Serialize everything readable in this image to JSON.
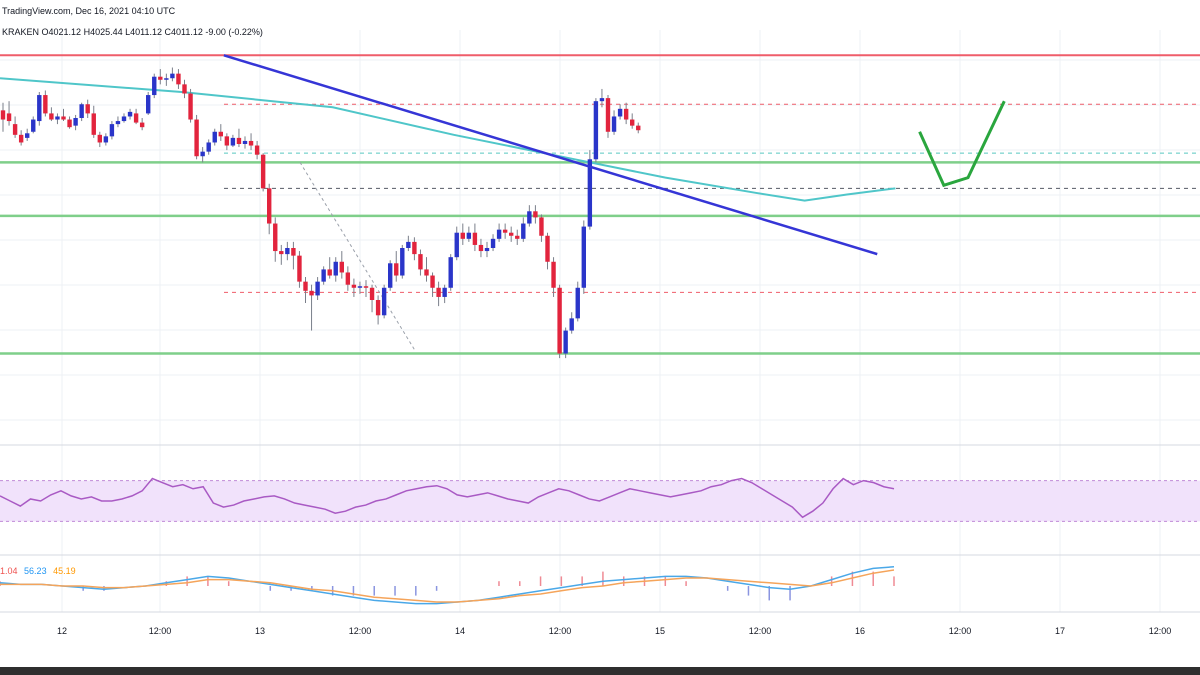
{
  "header": {
    "source_line": "TradingView.com, Dec 16, 2021 04:10 UTC",
    "symbol_prefix": "KRAKEN",
    "ohlc": "O4021.12  H4025.44  L4011.12  C4011.12  -9.00 (-0.22%)"
  },
  "macd_labels": {
    "v1": "1.04",
    "v2": "56.23",
    "v3": "45.19"
  },
  "chart_data": [
    {
      "type": "candlestick",
      "title": "",
      "time_labels": [
        "12",
        "12:00",
        "13",
        "12:00",
        "14",
        "12:00",
        "15",
        "12:00",
        "16",
        "12:00",
        "17",
        "12:00"
      ],
      "price_range": [
        3875,
        4130
      ],
      "horizontal_levels": {
        "resistance_red": 4120,
        "green_upper": 4050,
        "green_middle": 4015,
        "green_lower": 3925,
        "dashed_red_upper": 4088,
        "dashed_red_lower": 3965,
        "dashed_gray": 4033,
        "dashed_teal": 4056
      },
      "trendline_points": [
        {
          "t": 37,
          "p": 4120
        },
        {
          "t": 145,
          "p": 3990
        }
      ],
      "projection_points": [
        {
          "t": 152,
          "p": 4070
        },
        {
          "t": 156,
          "p": 4035
        },
        {
          "t": 160,
          "p": 4040
        },
        {
          "t": 166,
          "p": 4090
        }
      ],
      "ma_points": [
        {
          "t": 0,
          "p": 4105
        },
        {
          "t": 30,
          "p": 4096
        },
        {
          "t": 55,
          "p": 4086
        },
        {
          "t": 75,
          "p": 4068
        },
        {
          "t": 95,
          "p": 4052
        },
        {
          "t": 110,
          "p": 4040
        },
        {
          "t": 125,
          "p": 4030
        },
        {
          "t": 133,
          "p": 4025
        },
        {
          "t": 140,
          "p": 4029
        },
        {
          "t": 148,
          "p": 4033
        }
      ],
      "candles": [
        [
          4084,
          4089,
          4078,
          4070
        ],
        [
          4082,
          4090,
          4077,
          4074
        ],
        [
          4075,
          4080,
          4068,
          4066
        ],
        [
          4068,
          4071,
          4063,
          4061
        ],
        [
          4066,
          4072,
          4069,
          4064
        ],
        [
          4070,
          4080,
          4078,
          4069
        ],
        [
          4077,
          4096,
          4094,
          4074
        ],
        [
          4094,
          4097,
          4082,
          4080
        ],
        [
          4082,
          4086,
          4078,
          4077
        ],
        [
          4078,
          4082,
          4080,
          4075
        ],
        [
          4080,
          4085,
          4078,
          4077
        ],
        [
          4078,
          4080,
          4073,
          4072
        ],
        [
          4074,
          4081,
          4079,
          4071
        ],
        [
          4079,
          4089,
          4088,
          4077
        ],
        [
          4088,
          4091,
          4082,
          4079
        ],
        [
          4082,
          4087,
          4068,
          4066
        ],
        [
          4068,
          4070,
          4063,
          4060
        ],
        [
          4063,
          4069,
          4067,
          4061
        ],
        [
          4067,
          4077,
          4075,
          4065
        ],
        [
          4075,
          4080,
          4077,
          4073
        ],
        [
          4077,
          4082,
          4080,
          4076
        ],
        [
          4080,
          4085,
          4083,
          4078
        ],
        [
          4082,
          4085,
          4076,
          4075
        ],
        [
          4076,
          4079,
          4073,
          4071
        ],
        [
          4082,
          4096,
          4094,
          4081
        ],
        [
          4094,
          4108,
          4106,
          4092
        ],
        [
          4106,
          4111,
          4104,
          4101
        ],
        [
          4104,
          4108,
          4105,
          4100
        ],
        [
          4105,
          4112,
          4108,
          4103
        ],
        [
          4108,
          4111,
          4101,
          4098
        ],
        [
          4101,
          4104,
          4095,
          4092
        ],
        [
          4095,
          4098,
          4078,
          4076
        ],
        [
          4078,
          4081,
          4054,
          4052
        ],
        [
          4054,
          4060,
          4057,
          4050
        ],
        [
          4057,
          4065,
          4063,
          4055
        ],
        [
          4063,
          4072,
          4070,
          4061
        ],
        [
          4070,
          4075,
          4067,
          4064
        ],
        [
          4067,
          4069,
          4061,
          4058
        ],
        [
          4061,
          4068,
          4066,
          4060
        ],
        [
          4066,
          4072,
          4062,
          4060
        ],
        [
          4062,
          4067,
          4064,
          4059
        ],
        [
          4064,
          4069,
          4061,
          4058
        ],
        [
          4061,
          4064,
          4055,
          4052
        ],
        [
          4055,
          4056,
          4033,
          4031
        ],
        [
          4033,
          4036,
          4010,
          4003
        ],
        [
          4010,
          4014,
          3992,
          3985
        ],
        [
          3992,
          3996,
          3990,
          3983
        ],
        [
          3990,
          3998,
          3994,
          3986
        ],
        [
          3994,
          3998,
          3989,
          3980
        ],
        [
          3989,
          3992,
          3972,
          3968
        ],
        [
          3972,
          3975,
          3966,
          3958
        ],
        [
          3966,
          3970,
          3963,
          3940
        ],
        [
          3963,
          3975,
          3972,
          3960
        ],
        [
          3972,
          3982,
          3980,
          3970
        ],
        [
          3980,
          3988,
          3976,
          3974
        ],
        [
          3976,
          3988,
          3985,
          3972
        ],
        [
          3985,
          3992,
          3978,
          3974
        ],
        [
          3978,
          3982,
          3970,
          3966
        ],
        [
          3970,
          3974,
          3968,
          3962
        ],
        [
          3968,
          3972,
          3969,
          3964
        ],
        [
          3969,
          3973,
          3968,
          3962
        ],
        [
          3968,
          3970,
          3960,
          3952
        ],
        [
          3960,
          3963,
          3950,
          3944
        ],
        [
          3950,
          3970,
          3968,
          3948
        ],
        [
          3968,
          3986,
          3984,
          3966
        ],
        [
          3984,
          3992,
          3976,
          3972
        ],
        [
          3976,
          3996,
          3994,
          3974
        ],
        [
          3994,
          4002,
          3998,
          3992
        ],
        [
          3998,
          4001,
          3990,
          3986
        ],
        [
          3990,
          3993,
          3980,
          3976
        ],
        [
          3980,
          3988,
          3976,
          3972
        ],
        [
          3976,
          3978,
          3968,
          3962
        ],
        [
          3968,
          3972,
          3962,
          3956
        ],
        [
          3962,
          3970,
          3968,
          3958
        ],
        [
          3968,
          3990,
          3988,
          3966
        ],
        [
          3988,
          4008,
          4004,
          3986
        ],
        [
          4004,
          4010,
          4000,
          3996
        ],
        [
          4000,
          4008,
          4004,
          3998
        ],
        [
          4004,
          4010,
          3996,
          3992
        ],
        [
          3996,
          4000,
          3992,
          3988
        ],
        [
          3992,
          3998,
          3994,
          3988
        ],
        [
          3994,
          4003,
          4000,
          3992
        ],
        [
          4000,
          4010,
          4006,
          3998
        ],
        [
          4006,
          4010,
          4004,
          4000
        ],
        [
          4004,
          4008,
          4002,
          3998
        ],
        [
          4002,
          4006,
          4000,
          3996
        ],
        [
          4000,
          4014,
          4010,
          3998
        ],
        [
          4010,
          4022,
          4018,
          4008
        ],
        [
          4018,
          4022,
          4014,
          4010
        ],
        [
          4014,
          4016,
          4002,
          3998
        ],
        [
          4002,
          4004,
          3985,
          3980
        ],
        [
          3985,
          3988,
          3968,
          3962
        ],
        [
          3968,
          3970,
          3925,
          3922
        ],
        [
          3925,
          3942,
          3940,
          3922
        ],
        [
          3940,
          3952,
          3948,
          3938
        ],
        [
          3948,
          3972,
          3968,
          3946
        ],
        [
          3968,
          4012,
          4008,
          3964
        ],
        [
          4008,
          4058,
          4052,
          4006
        ],
        [
          4052,
          4092,
          4090,
          4050
        ],
        [
          4090,
          4098,
          4092,
          4086
        ],
        [
          4092,
          4094,
          4070,
          4066
        ],
        [
          4070,
          4084,
          4080,
          4068
        ],
        [
          4080,
          4088,
          4085,
          4078
        ],
        [
          4085,
          4089,
          4078,
          4075
        ],
        [
          4078,
          4082,
          4074,
          4072
        ],
        [
          4074,
          4076,
          4071,
          4069
        ]
      ]
    },
    {
      "type": "line",
      "name": "",
      "title": "",
      "band": [
        30,
        70
      ],
      "values": [
        55,
        50,
        45,
        52,
        50,
        56,
        60,
        55,
        52,
        54,
        50,
        50,
        52,
        55,
        60,
        72,
        68,
        64,
        66,
        62,
        64,
        48,
        44,
        46,
        50,
        52,
        54,
        55,
        52,
        48,
        46,
        44,
        42,
        38,
        40,
        44,
        46,
        50,
        52,
        56,
        60,
        62,
        64,
        65,
        62,
        56,
        54,
        56,
        58,
        55,
        52,
        50,
        48,
        54,
        58,
        62,
        60,
        56,
        52,
        50,
        54,
        58,
        62,
        60,
        58,
        56,
        54,
        56,
        58,
        60,
        64,
        66,
        70,
        72,
        68,
        62,
        56,
        50,
        44,
        34,
        40,
        48,
        62,
        72,
        66,
        70,
        68,
        64,
        62
      ]
    },
    {
      "type": "line",
      "title": "",
      "series": [
        {
          "name": "",
          "values": [
            2,
            1,
            1,
            0,
            -1,
            -2,
            -1,
            0,
            2,
            4,
            6,
            5,
            3,
            1,
            -1,
            -3,
            -5,
            -7,
            -9,
            -10,
            -11,
            -11,
            -10,
            -9,
            -7,
            -5,
            -3,
            -1,
            1,
            3,
            4,
            5,
            6,
            6,
            5,
            3,
            1,
            -1,
            -2,
            0,
            4,
            8,
            11,
            12
          ]
        },
        {
          "name": "",
          "values": [
            1,
            1,
            1,
            0,
            0,
            -1,
            -1,
            0,
            1,
            2,
            4,
            4,
            3,
            2,
            0,
            -2,
            -3,
            -5,
            -7,
            -8,
            -9,
            -10,
            -10,
            -9,
            -8,
            -6,
            -5,
            -3,
            -1,
            0,
            2,
            3,
            4,
            5,
            5,
            4,
            3,
            2,
            1,
            0,
            2,
            5,
            8,
            10
          ]
        }
      ],
      "histogram": [
        1,
        0,
        0,
        0,
        -1,
        -1,
        0,
        0,
        1,
        2,
        2,
        1,
        0,
        -1,
        -1,
        -1,
        -2,
        -2,
        -2,
        -2,
        -2,
        -1,
        0,
        0,
        1,
        1,
        2,
        2,
        2,
        3,
        2,
        2,
        2,
        1,
        0,
        -1,
        -2,
        -3,
        -3,
        0,
        2,
        3,
        3,
        2
      ]
    }
  ]
}
